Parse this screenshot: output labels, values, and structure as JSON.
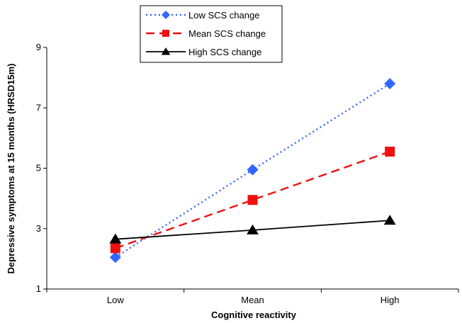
{
  "chart_data": {
    "type": "line",
    "title": "",
    "xlabel": "Cognitive reactivity",
    "ylabel": "Depressive symptoms at 15 months (HRSD15m)",
    "categories": [
      "Low",
      "Mean",
      "High"
    ],
    "yticks": [
      "1",
      "3",
      "5",
      "7",
      "9"
    ],
    "ylim": [
      1,
      9
    ],
    "grid": false,
    "legend_position": "top",
    "series": [
      {
        "name": "Low SCS change",
        "values": [
          2.05,
          4.95,
          7.8
        ],
        "color": "#3366ff",
        "line_style": "dotted",
        "marker": "diamond"
      },
      {
        "name": "Mean SCS change",
        "values": [
          2.35,
          3.95,
          5.55
        ],
        "color": "#ee1111",
        "line_style": "dashed",
        "marker": "square"
      },
      {
        "name": "High SCS change",
        "values": [
          2.65,
          2.95,
          3.27
        ],
        "color": "#000000",
        "line_style": "solid",
        "marker": "triangle"
      }
    ]
  }
}
